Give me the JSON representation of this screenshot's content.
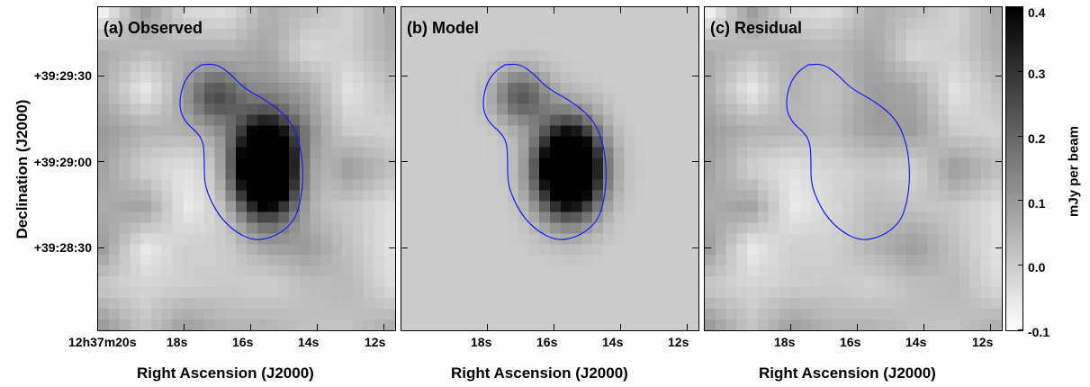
{
  "panels": [
    {
      "title": "(a) Observed",
      "type": "observed"
    },
    {
      "title": "(b) Model",
      "type": "model"
    },
    {
      "title": "(c) Residual",
      "type": "residual"
    }
  ],
  "y_axis": {
    "title": "Declination (J2000)",
    "ticks": [
      "+39:29:30",
      "+39:29:00",
      "+39:28:30"
    ]
  },
  "x_axis": {
    "title": "Right Ascension (J2000)",
    "panel_a_ticks": [
      "12h37m20s",
      "18s",
      "16s",
      "14s",
      "12s"
    ],
    "panel_b_ticks": [
      "18s",
      "16s",
      "14s",
      "12s"
    ],
    "panel_c_ticks": [
      "18s",
      "16s",
      "14s",
      "12s"
    ]
  },
  "colorbar": {
    "title": "mJy per beam",
    "ticks": [
      "0.4",
      "0.3",
      "0.2",
      "0.1",
      "0.0",
      "-0.1"
    ],
    "range": [
      -0.1,
      0.4
    ]
  },
  "colors": {
    "contour": "#1a1aff"
  }
}
